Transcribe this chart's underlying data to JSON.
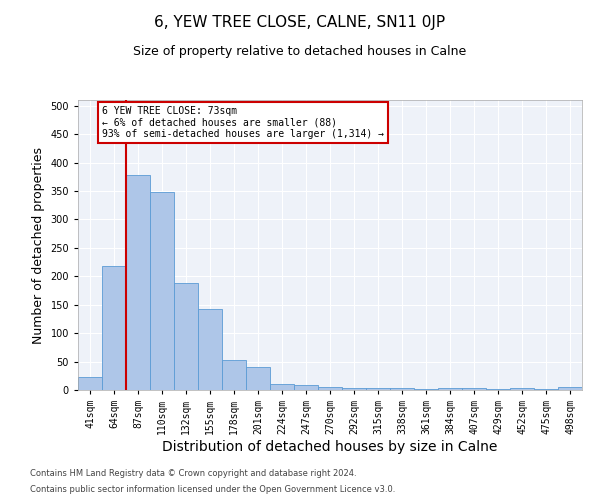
{
  "title": "6, YEW TREE CLOSE, CALNE, SN11 0JP",
  "subtitle": "Size of property relative to detached houses in Calne",
  "xlabel": "Distribution of detached houses by size in Calne",
  "ylabel": "Number of detached properties",
  "footnote1": "Contains HM Land Registry data © Crown copyright and database right 2024.",
  "footnote2": "Contains public sector information licensed under the Open Government Licence v3.0.",
  "categories": [
    "41sqm",
    "64sqm",
    "87sqm",
    "110sqm",
    "132sqm",
    "155sqm",
    "178sqm",
    "201sqm",
    "224sqm",
    "247sqm",
    "270sqm",
    "292sqm",
    "315sqm",
    "338sqm",
    "361sqm",
    "384sqm",
    "407sqm",
    "429sqm",
    "452sqm",
    "475sqm",
    "498sqm"
  ],
  "values": [
    22,
    218,
    378,
    348,
    189,
    143,
    53,
    40,
    11,
    8,
    5,
    4,
    4,
    4,
    1,
    4,
    4,
    1,
    4,
    1,
    5
  ],
  "bar_color": "#aec6e8",
  "bar_edge_color": "#5b9bd5",
  "vline_x": 1.5,
  "vline_color": "#cc0000",
  "annotation_text": "6 YEW TREE CLOSE: 73sqm\n← 6% of detached houses are smaller (88)\n93% of semi-detached houses are larger (1,314) →",
  "annotation_box_color": "#ffffff",
  "annotation_box_edge_color": "#cc0000",
  "ylim": [
    0,
    510
  ],
  "yticks": [
    0,
    50,
    100,
    150,
    200,
    250,
    300,
    350,
    400,
    450,
    500
  ],
  "bg_color": "#eef2f9",
  "title_fontsize": 11,
  "subtitle_fontsize": 9,
  "axis_label_fontsize": 9,
  "tick_fontsize": 7,
  "footnote_fontsize": 6
}
